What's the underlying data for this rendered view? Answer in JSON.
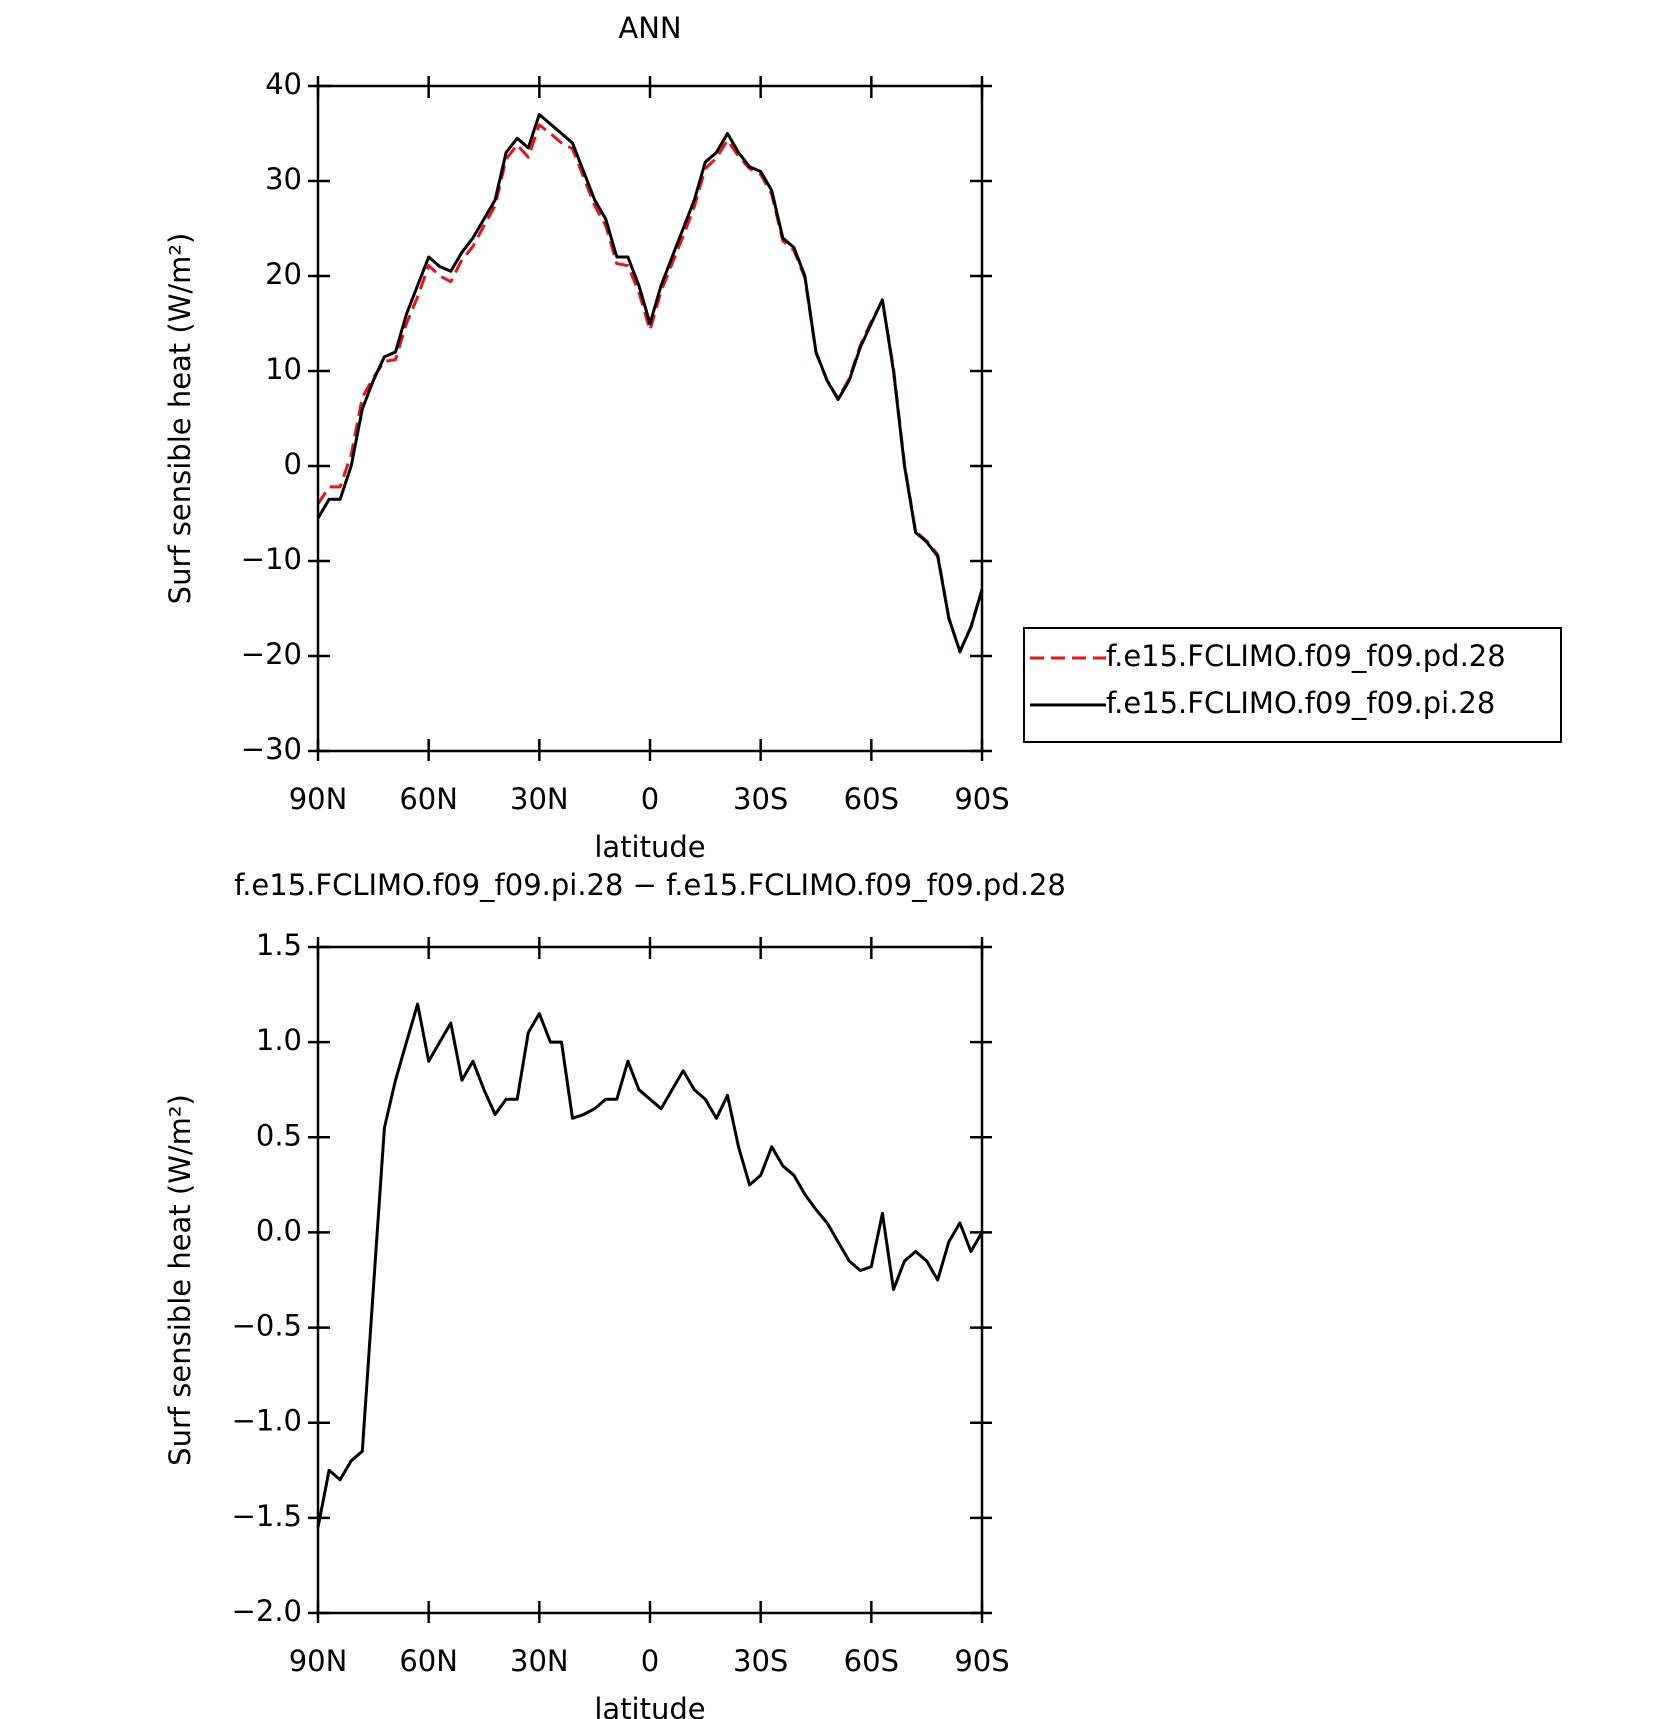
{
  "chart_data": [
    {
      "type": "line",
      "title": "ANN",
      "xlabel": "latitude",
      "ylabel": "Surf sensible heat (W/m²)",
      "xlim": [
        90,
        -90
      ],
      "xticks": [
        {
          "value": 90,
          "label": "90N"
        },
        {
          "value": 60,
          "label": "60N"
        },
        {
          "value": 30,
          "label": "30N"
        },
        0,
        {
          "value": -30,
          "label": "30S"
        },
        {
          "value": -60,
          "label": "60S"
        },
        {
          "value": -90,
          "label": "90S"
        }
      ],
      "ylim": [
        -30,
        40
      ],
      "yticks": [
        {
          "value": -30,
          "label": "−30"
        },
        {
          "value": -20,
          "label": "−20"
        },
        {
          "value": -10,
          "label": "−10"
        },
        0,
        10,
        20,
        30,
        40
      ],
      "legend": "outside right",
      "x": [
        90,
        87,
        84,
        81,
        78,
        75,
        72,
        69,
        66,
        63,
        60,
        57,
        54,
        51,
        48,
        45,
        42,
        39,
        36,
        33,
        30,
        27,
        24,
        21,
        18,
        15,
        12,
        9,
        6,
        3,
        0,
        -3,
        -6,
        -9,
        -12,
        -15,
        -18,
        -21,
        -24,
        -27,
        -30,
        -33,
        -36,
        -39,
        -42,
        -45,
        -48,
        -51,
        -54,
        -57,
        -60,
        -63,
        -66,
        -69,
        -72,
        -75,
        -78,
        -81,
        -84,
        -87,
        -90
      ],
      "series": [
        {
          "name": "f.e15.FCLIMO.f09_f09.pd.28",
          "color": "#e8141a",
          "dash": true,
          "values": [
            -4,
            -2.2,
            -2.2,
            1.2,
            7.2,
            9.3,
            11,
            11.2,
            15,
            17.8,
            21.1,
            20,
            19.4,
            21.7,
            23.1,
            25.3,
            27.4,
            32.3,
            33.8,
            32.5,
            35.9,
            35,
            34,
            33.4,
            30.4,
            27.4,
            25.3,
            21.3,
            21.1,
            18.3,
            14.3,
            18.4,
            21.3,
            24.2,
            27.3,
            31.3,
            32.4,
            34.3,
            32.6,
            31.3,
            30.7,
            28.6,
            23.7,
            22.7,
            19.8,
            11.9,
            9,
            7.1,
            9.2,
            12.7,
            15.2,
            17.4,
            10.3,
            0.2,
            -6.9,
            -7.9,
            -9.3,
            -16,
            -19.6,
            -16.9,
            -13
          ]
        },
        {
          "name": "f.e15.FCLIMO.f09_f09.pi.28",
          "color": "#000000",
          "dash": false,
          "values": [
            -5.5,
            -3.5,
            -3.5,
            0,
            6,
            9,
            11.5,
            12,
            16,
            19,
            22,
            21,
            20.5,
            22.5,
            24,
            26,
            28,
            33,
            34.5,
            33.5,
            37,
            36,
            35,
            34,
            31,
            28,
            26,
            22,
            22,
            19,
            15,
            19,
            22,
            25,
            28,
            32,
            33,
            35,
            33,
            31.5,
            31,
            29,
            24,
            23,
            20,
            12,
            9,
            7,
            9,
            12.5,
            15,
            17.5,
            10,
            0,
            -7,
            -8,
            -9.5,
            -16,
            -19.5,
            -17,
            -13
          ]
        }
      ]
    },
    {
      "type": "line",
      "title": "f.e15.FCLIMO.f09_f09.pi.28 − f.e15.FCLIMO.f09_f09.pd.28",
      "xlabel": "latitude",
      "ylabel": "Surf sensible heat (W/m²)",
      "xlim": [
        90,
        -90
      ],
      "xticks": [
        {
          "value": 90,
          "label": "90N"
        },
        {
          "value": 60,
          "label": "60N"
        },
        {
          "value": 30,
          "label": "30N"
        },
        0,
        {
          "value": -30,
          "label": "30S"
        },
        {
          "value": -60,
          "label": "60S"
        },
        {
          "value": -90,
          "label": "90S"
        }
      ],
      "ylim": [
        -2,
        1.5
      ],
      "yticks": [
        {
          "value": -2,
          "label": "−2.0"
        },
        {
          "value": -1.5,
          "label": "−1.5"
        },
        {
          "value": -1,
          "label": "−1.0"
        },
        {
          "value": -0.5,
          "label": "−0.5"
        },
        {
          "value": 0,
          "label": "0.0"
        },
        0.5,
        {
          "value": 1,
          "label": "1.0"
        },
        1.5
      ],
      "x": [
        90,
        87,
        84,
        81,
        78,
        75,
        72,
        69,
        66,
        63,
        60,
        57,
        54,
        51,
        48,
        45,
        42,
        39,
        36,
        33,
        30,
        27,
        24,
        21,
        18,
        15,
        12,
        9,
        6,
        3,
        0,
        -3,
        -6,
        -9,
        -12,
        -15,
        -18,
        -21,
        -24,
        -27,
        -30,
        -33,
        -36,
        -39,
        -42,
        -45,
        -48,
        -51,
        -54,
        -57,
        -60,
        -63,
        -66,
        -69,
        -72,
        -75,
        -78,
        -81,
        -84,
        -87,
        -90
      ],
      "series": [
        {
          "color": "#000000",
          "values": [
            -1.55,
            -1.25,
            -1.3,
            -1.2,
            -1.15,
            -0.3,
            0.55,
            0.8,
            1,
            1.2,
            0.9,
            1,
            1.1,
            0.8,
            0.9,
            0.75,
            0.62,
            0.7,
            0.7,
            1.05,
            1.15,
            1,
            1,
            0.6,
            0.62,
            0.65,
            0.7,
            0.7,
            0.9,
            0.75,
            0.7,
            0.65,
            0.75,
            0.85,
            0.75,
            0.7,
            0.6,
            0.72,
            0.45,
            0.25,
            0.3,
            0.45,
            0.35,
            0.3,
            0.2,
            0.12,
            0.05,
            -0.05,
            -0.15,
            -0.2,
            -0.18,
            0.1,
            -0.3,
            -0.15,
            -0.1,
            -0.15,
            -0.25,
            -0.05,
            0.05,
            -0.1,
            0
          ]
        }
      ]
    }
  ]
}
